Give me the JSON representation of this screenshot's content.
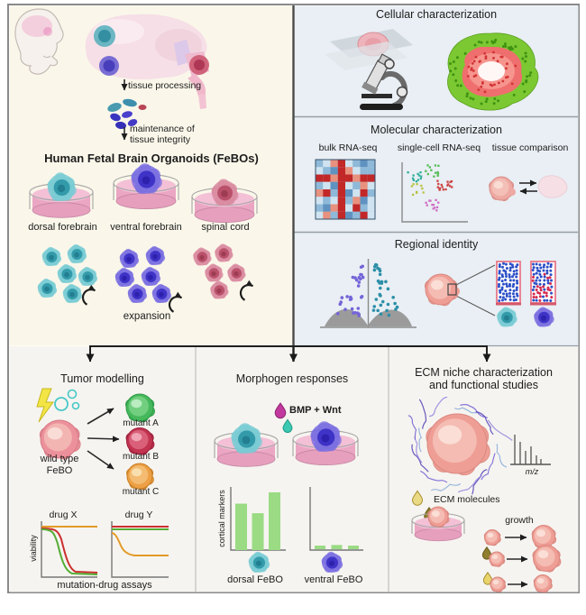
{
  "palette": {
    "cream_panel_bg": "#faf7ea",
    "blue_panel_bg": "#e9eff4",
    "bottom_panel_bg": "#f6f4f0",
    "frame_border": "#8a8a8a",
    "divider": "#4a4a4a",
    "teal_organoid": "#2f97a8",
    "indigo_organoid": "#3b2fc4",
    "maroon_organoid": "#b34b63",
    "dish_pink": "#eba6c3",
    "bar_green": "#9adb84",
    "curve_orange": "#e39b28",
    "curve_red": "#cc2f2f",
    "curve_green": "#55ad35"
  },
  "top_left": {
    "step1_label": "tissue processing",
    "step2_line1": "maintenance of",
    "step2_line2": "tissue integrity",
    "title": "Human Fetal Brain Organoids (FeBOs)",
    "dish_labels": [
      "dorsal forebrain",
      "ventral forebrain",
      "spinal cord"
    ],
    "expansion_label": "expansion"
  },
  "right_panels": {
    "cellular": {
      "title": "Cellular characterization"
    },
    "molecular": {
      "title": "Molecular characterization",
      "col_labels": [
        "bulk RNA-seq",
        "single-cell RNA-seq",
        "tissue comparison"
      ]
    },
    "regional": {
      "title": "Regional identity"
    }
  },
  "bottom": {
    "tumor": {
      "title": "Tumor modelling",
      "wild_type_line1": "wild type",
      "wild_type_line2": "FeBO",
      "mutant_labels": [
        "mutant A",
        "mutant B",
        "mutant C"
      ],
      "drug_x_title": "drug X",
      "drug_y_title": "drug Y",
      "y_axis_label": "viability",
      "caption": "mutation-drug assays"
    },
    "morphogen": {
      "title": "Morphogen responses",
      "treatment_label": "BMP + Wnt",
      "y_axis_label": "cortical markers",
      "dorsal_label": "dorsal FeBO",
      "ventral_label": "ventral FeBO"
    },
    "ecm": {
      "title_line1": "ECM niche characterization",
      "title_line2": "and functional studies",
      "ms_label": "m/z",
      "molecules_label": "ECM molecules",
      "growth_label": "growth"
    }
  },
  "chart_data": [
    {
      "type": "bar",
      "title": "cortical markers - dorsal FeBO",
      "ylabel": "cortical markers",
      "values": [
        78,
        62,
        97
      ],
      "ylim": [
        0,
        100
      ],
      "bar_color": "#9adb84"
    },
    {
      "type": "bar",
      "title": "cortical markers - ventral FeBO",
      "ylabel": "cortical markers",
      "values": [
        6,
        7,
        6
      ],
      "ylim": [
        0,
        100
      ],
      "bar_color": "#9adb84"
    },
    {
      "type": "line",
      "title": "drug X",
      "ylabel": "viability",
      "series": [
        {
          "name": "mutant C",
          "color": "#e39b28",
          "trend": "flat high (resistant)"
        },
        {
          "name": "mutant B",
          "color": "#cc2f2f",
          "trend": "sigmoidal decrease (sensitive)"
        },
        {
          "name": "mutant A",
          "color": "#55ad35",
          "trend": "sigmoidal decrease (sensitive)"
        }
      ]
    },
    {
      "type": "line",
      "title": "drug Y",
      "ylabel": "viability",
      "series": [
        {
          "name": "mutant B",
          "color": "#cc2f2f",
          "trend": "flat high (resistant)"
        },
        {
          "name": "mutant A",
          "color": "#55ad35",
          "trend": "flat high (resistant)"
        },
        {
          "name": "mutant C",
          "color": "#e39b28",
          "trend": "decrease to low plateau (sensitive)"
        }
      ]
    }
  ]
}
